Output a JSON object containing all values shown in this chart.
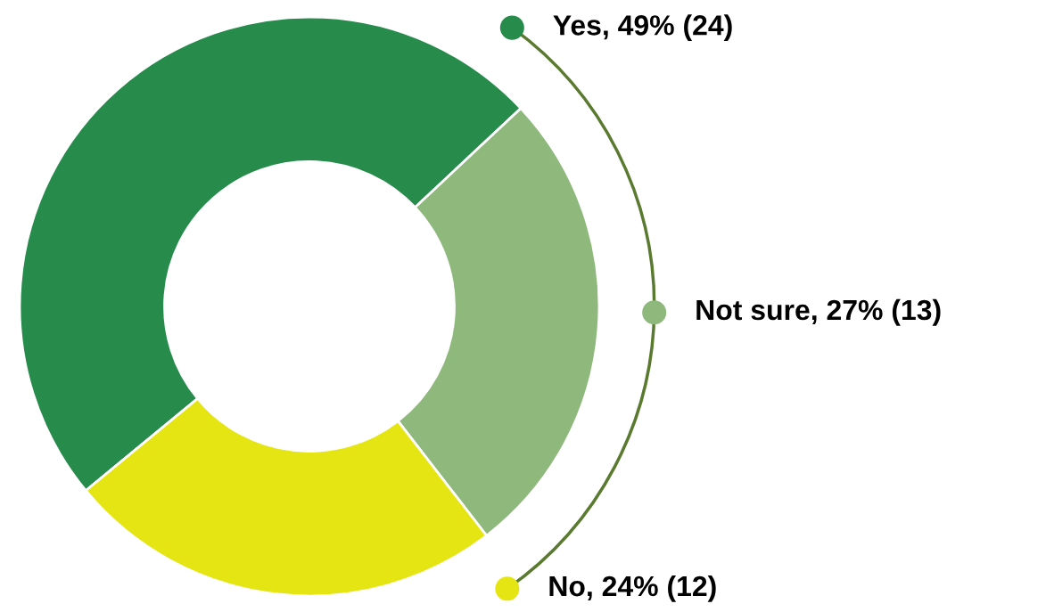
{
  "chart_data": {
    "type": "donut",
    "categories": [
      "Yes",
      "Not sure",
      "No"
    ],
    "values": [
      24,
      13,
      12
    ],
    "value_labels": [
      "49% (24)",
      "27% (13)",
      "24% (12)"
    ],
    "colors": [
      "#278b4c",
      "#8fb87c",
      "#e5e514"
    ],
    "legend": "right"
  }
}
